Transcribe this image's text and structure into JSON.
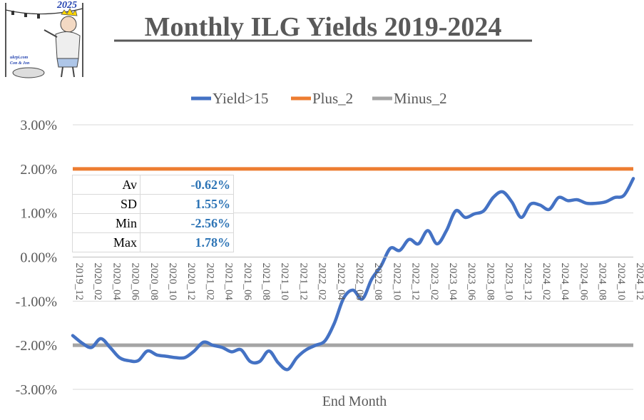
{
  "logo": {
    "year": "2025",
    "site": "ukrpi.com",
    "authors": "Con & Jon"
  },
  "chart_data": {
    "type": "line",
    "title": "Monthly ILG Yields 2019-2024",
    "xlabel": "End Month",
    "ylabel": "",
    "ylim": [
      -0.03,
      0.03
    ],
    "ytick_values": [
      -0.03,
      -0.02,
      -0.01,
      0,
      0.01,
      0.02,
      0.03
    ],
    "ytick_labels": [
      "-3.00%",
      "-2.00%",
      "-1.00%",
      "0.00%",
      "1.00%",
      "2.00%",
      "3.00%"
    ],
    "x": [
      "2019_12",
      "2020_01",
      "2020_02",
      "2020_03",
      "2020_04",
      "2020_05",
      "2020_06",
      "2020_07",
      "2020_08",
      "2020_09",
      "2020_10",
      "2020_11",
      "2020_12",
      "2021_01",
      "2021_02",
      "2021_03",
      "2021_04",
      "2021_05",
      "2021_06",
      "2021_07",
      "2021_08",
      "2021_09",
      "2021_10",
      "2021_11",
      "2021_12",
      "2022_01",
      "2022_02",
      "2022_03",
      "2022_04",
      "2022_05",
      "2022_06",
      "2022_07",
      "2022_08",
      "2022_09",
      "2022_10",
      "2022_11",
      "2022_12",
      "2023_01",
      "2023_02",
      "2023_03",
      "2023_04",
      "2023_05",
      "2023_06",
      "2023_07",
      "2023_08",
      "2023_09",
      "2023_10",
      "2023_11",
      "2023_12",
      "2024_01",
      "2024_02",
      "2024_03",
      "2024_04",
      "2024_05",
      "2024_06",
      "2024_07",
      "2024_08",
      "2024_09",
      "2024_10",
      "2024_11",
      "2024_12"
    ],
    "x_tick_labels": [
      "2019_12",
      "2020_02",
      "2020_04",
      "2020_06",
      "2020_08",
      "2020_10",
      "2020_12",
      "2021_02",
      "2021_04",
      "2021_06",
      "2021_08",
      "2021_10",
      "2021_12",
      "2022_02",
      "2022_04",
      "2022_06",
      "2022_08",
      "2022_10",
      "2022_12",
      "2023_02",
      "2023_04",
      "2023_06",
      "2023_08",
      "2023_10",
      "2023_12",
      "2024_02",
      "2024_04",
      "2024_06",
      "2024_08",
      "2024_10",
      "2024_12"
    ],
    "series": [
      {
        "name": "Yield>15",
        "color": "#4472c4",
        "values": [
          -0.0178,
          -0.0195,
          -0.0205,
          -0.0185,
          -0.0205,
          -0.0228,
          -0.0235,
          -0.0235,
          -0.0213,
          -0.0222,
          -0.0225,
          -0.0228,
          -0.0228,
          -0.0213,
          -0.0193,
          -0.02,
          -0.0205,
          -0.0215,
          -0.021,
          -0.0237,
          -0.0237,
          -0.0213,
          -0.024,
          -0.0255,
          -0.0228,
          -0.021,
          -0.02,
          -0.019,
          -0.015,
          -0.0093,
          -0.0075,
          -0.0095,
          -0.005,
          -0.002,
          0.002,
          0.0015,
          0.004,
          0.003,
          0.006,
          0.003,
          0.006,
          0.0105,
          0.009,
          0.0098,
          0.0105,
          0.0135,
          0.0148,
          0.0125,
          0.009,
          0.012,
          0.0118,
          0.0108,
          0.0135,
          0.0128,
          0.013,
          0.0122,
          0.0122,
          0.0125,
          0.0135,
          0.014,
          0.0178
        ]
      },
      {
        "name": "Plus_2",
        "color": "#ed7d31",
        "values_constant": 0.02
      },
      {
        "name": "Minus_2",
        "color": "#a5a5a5",
        "values_constant": -0.02
      }
    ],
    "legend_position": "top",
    "grid": {
      "horizontal": true,
      "vertical": false
    }
  },
  "stats": [
    {
      "label": "Av",
      "value": "-0.62%"
    },
    {
      "label": "SD",
      "value": "1.55%"
    },
    {
      "label": "Min",
      "value": "-2.56%"
    },
    {
      "label": "Max",
      "value": "1.78%"
    }
  ]
}
